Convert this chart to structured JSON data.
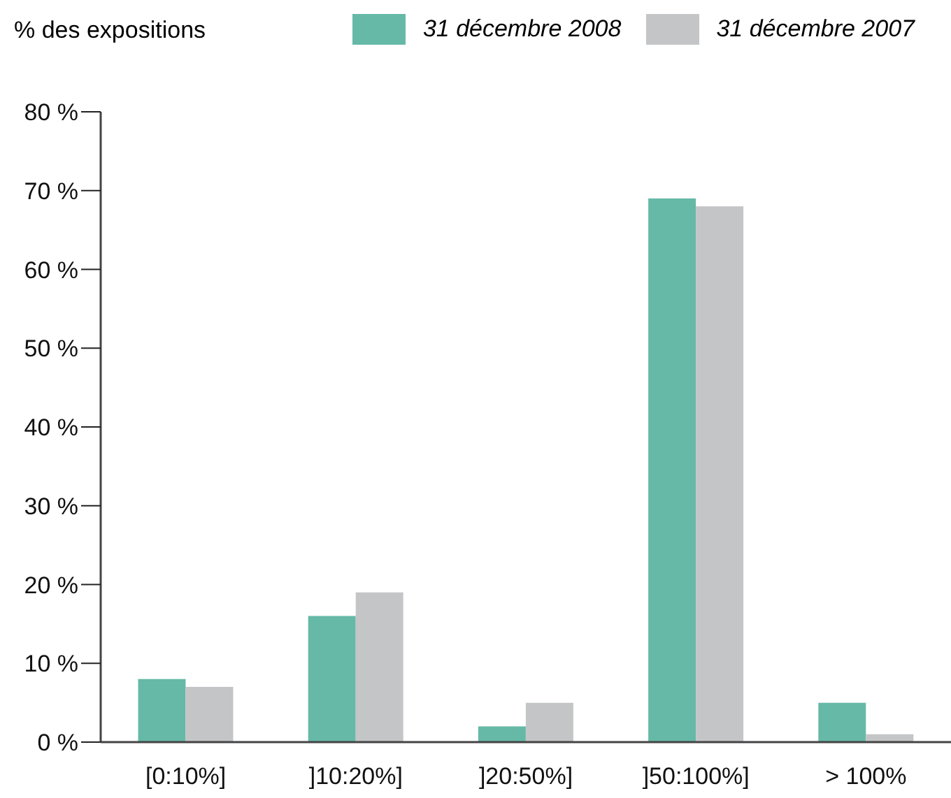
{
  "chart_data": {
    "type": "bar",
    "ylabel": "% des expositions",
    "categories": [
      "[0:10%]",
      "]10:20%]",
      "]20:50%]",
      "]50:100%]",
      "> 100%"
    ],
    "series": [
      {
        "name": "31 décembre 2008",
        "color": "#66b9a7",
        "values": [
          8,
          16,
          2,
          69,
          5
        ]
      },
      {
        "name": "31 décembre 2007",
        "color": "#c4c5c7",
        "values": [
          7,
          19,
          5,
          68,
          1
        ]
      }
    ],
    "ylim": [
      0,
      80
    ],
    "yticks": [
      {
        "value": 0,
        "label": "0 %"
      },
      {
        "value": 10,
        "label": "10 %"
      },
      {
        "value": 20,
        "label": "20 %"
      },
      {
        "value": 30,
        "label": "30 %"
      },
      {
        "value": 40,
        "label": "40 %"
      },
      {
        "value": 50,
        "label": "50 %"
      },
      {
        "value": 60,
        "label": "60 %"
      },
      {
        "value": 70,
        "label": "70 %"
      },
      {
        "value": 80,
        "label": "80 %"
      }
    ],
    "grid": false,
    "legend": "top right"
  }
}
